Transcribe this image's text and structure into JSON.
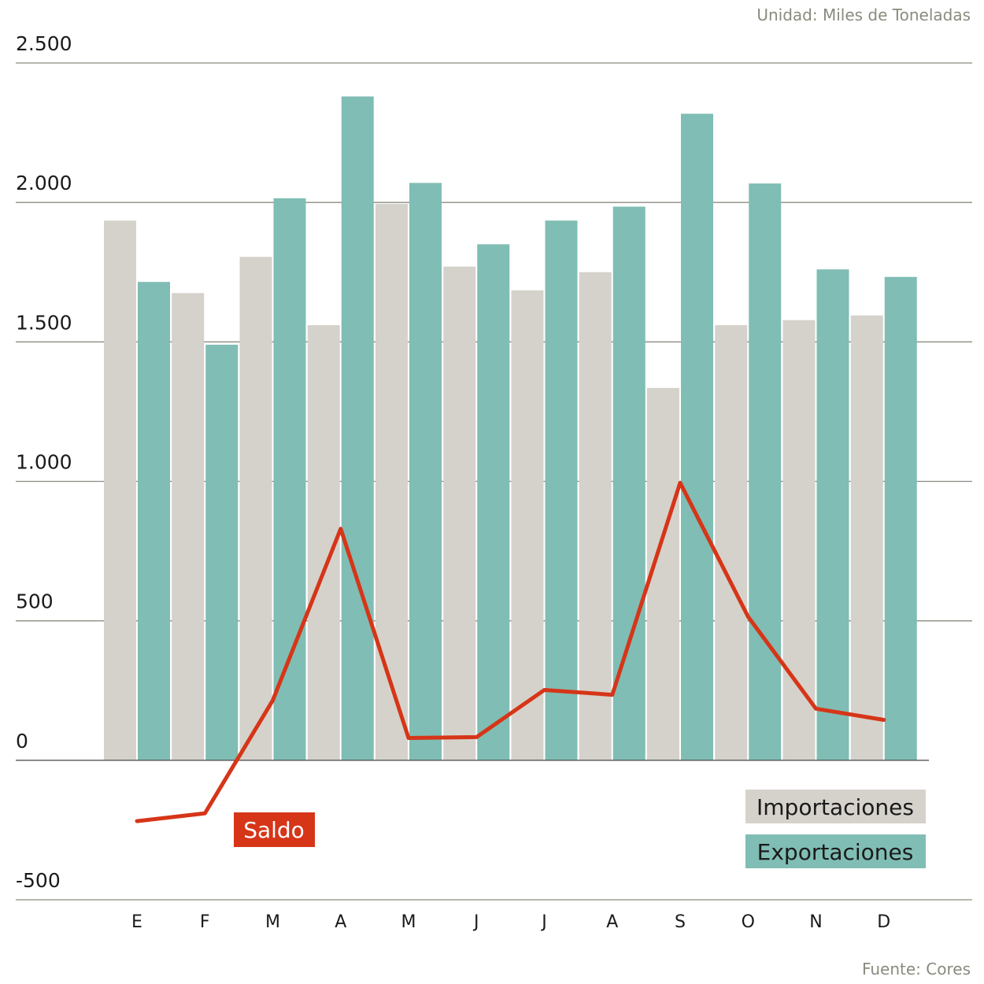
{
  "chart_data": {
    "type": "bar",
    "unit_note": "Unidad: Miles de Toneladas",
    "source": "Fuente: Cores",
    "categories": [
      "E",
      "F",
      "M",
      "A",
      "M",
      "J",
      "J",
      "A",
      "S",
      "O",
      "N",
      "D"
    ],
    "series": [
      {
        "name": "Importaciones",
        "type": "bar",
        "color": "#d5d2cb",
        "values": [
          1935,
          1675,
          1805,
          1560,
          1995,
          1770,
          1685,
          1750,
          1335,
          1560,
          1578,
          1595
        ]
      },
      {
        "name": "Exportaciones",
        "type": "bar",
        "color": "#80bdb4",
        "values": [
          1715,
          1490,
          2015,
          2380,
          2070,
          1850,
          1935,
          1985,
          2318,
          2068,
          1760,
          1733
        ]
      },
      {
        "name": "Saldo",
        "type": "line",
        "color": "#d63518",
        "values": [
          -218,
          -190,
          215,
          830,
          80,
          83,
          252,
          235,
          995,
          515,
          185,
          145
        ]
      }
    ],
    "yticks": [
      2500,
      2000,
      1500,
      1000,
      500,
      0,
      -500
    ],
    "ytick_labels": [
      "2.500",
      "2.000",
      "1.500",
      "1.000",
      "500",
      "0",
      "-500"
    ],
    "ylim": [
      -500,
      2500
    ],
    "grid": true,
    "legend": [
      "Importaciones",
      "Exportaciones"
    ],
    "line_label": "Saldo"
  }
}
